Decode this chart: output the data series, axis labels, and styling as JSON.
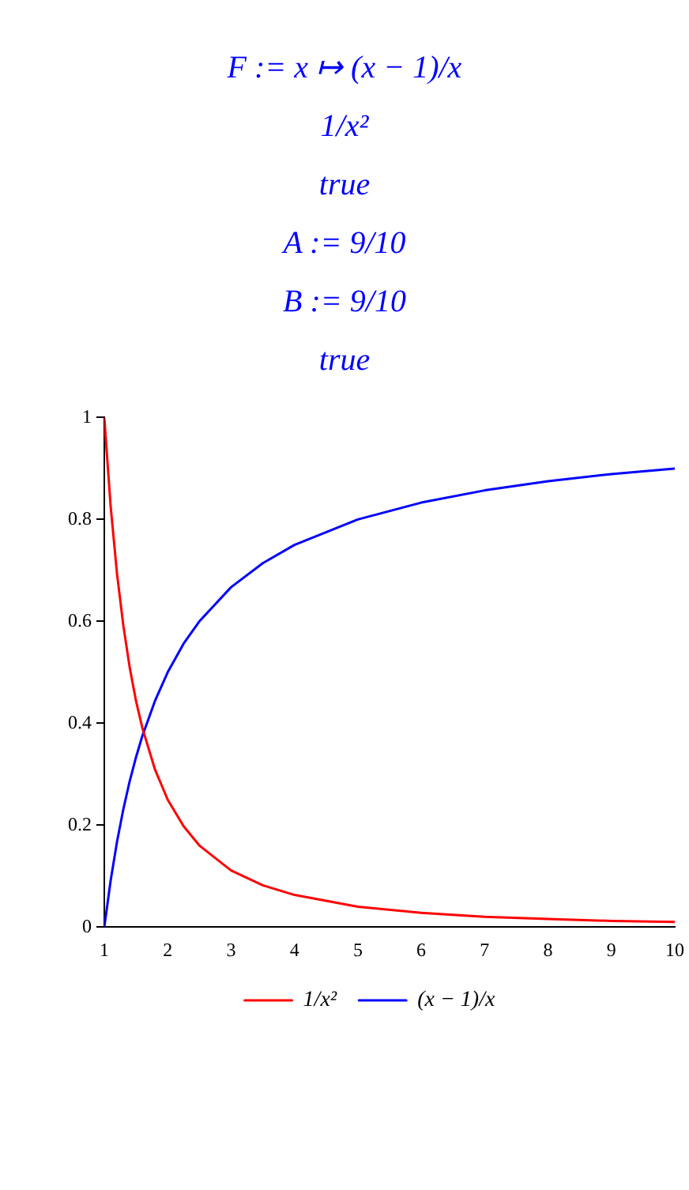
{
  "chart_data": {
    "type": "line",
    "annotations": [
      "F := x ↦ (x − 1)/x",
      "1/x²",
      "true",
      "A := 9/10",
      "B := 9/10",
      "true"
    ],
    "x": [
      1,
      1.1,
      1.2,
      1.3,
      1.4,
      1.5,
      1.6,
      1.8,
      2,
      2.25,
      2.5,
      3,
      3.5,
      4,
      5,
      6,
      7,
      8,
      9,
      10
    ],
    "series": [
      {
        "name": "1/x²",
        "color": "#ff0000",
        "values": [
          1,
          0.826,
          0.694,
          0.592,
          0.51,
          0.444,
          0.391,
          0.309,
          0.25,
          0.198,
          0.16,
          0.111,
          0.082,
          0.063,
          0.04,
          0.028,
          0.02,
          0.016,
          0.012,
          0.01
        ]
      },
      {
        "name": "(x − 1)/x",
        "color": "#0000ff",
        "values": [
          0,
          0.091,
          0.167,
          0.231,
          0.286,
          0.333,
          0.375,
          0.444,
          0.5,
          0.556,
          0.6,
          0.667,
          0.714,
          0.75,
          0.8,
          0.833,
          0.857,
          0.875,
          0.889,
          0.9
        ]
      }
    ],
    "xlim": [
      1,
      10
    ],
    "xticks": [
      1,
      2,
      3,
      4,
      5,
      6,
      7,
      8,
      9,
      10
    ],
    "ylim": [
      0,
      1
    ],
    "yticks": [
      0,
      0.2,
      0.4,
      0.6,
      0.8,
      1
    ],
    "grid": false,
    "legend": "bottom",
    "marker": "none",
    "line_style": "solid"
  }
}
